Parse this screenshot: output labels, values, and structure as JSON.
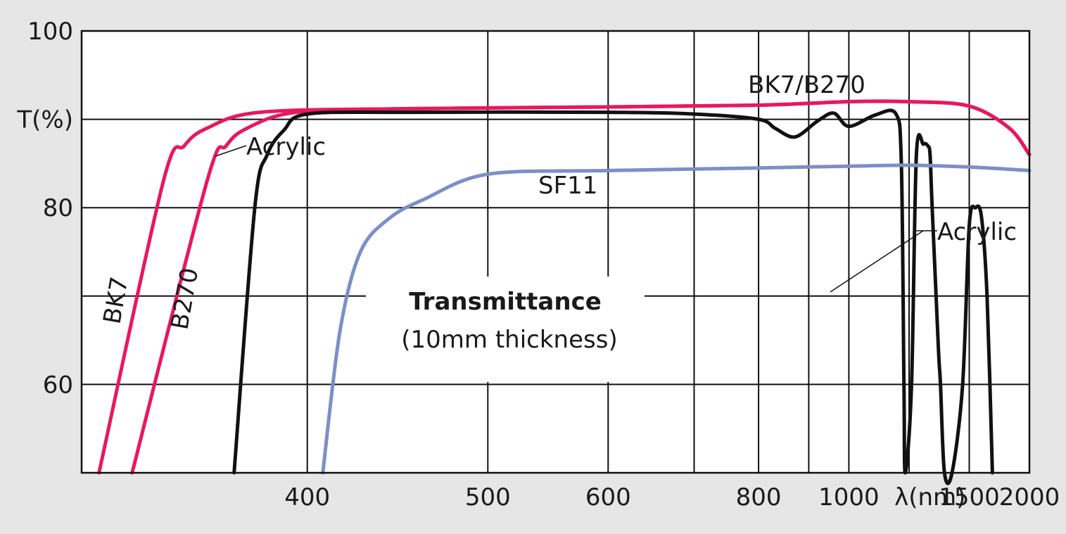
{
  "chart_data": {
    "type": "line",
    "title": "Transmittance",
    "subtitle": "(10mm thickness)",
    "ylabel": "T(%)",
    "xlabel": "λ(nm)",
    "ylim": [
      50,
      100
    ],
    "x_scale": "reciprocal",
    "xlim": [
      320,
      2000
    ],
    "grid": true,
    "x_ticks": [
      {
        "value": 400,
        "label": "400"
      },
      {
        "value": 500,
        "label": "500"
      },
      {
        "value": 600,
        "label": "600"
      },
      {
        "value": 800,
        "label": "800"
      },
      {
        "value": 1000,
        "label": "1000"
      },
      {
        "value": 1500,
        "label": "1500"
      },
      {
        "value": 2000,
        "label": "2000"
      }
    ],
    "x_gridlines": [
      400,
      500,
      600,
      700,
      800,
      900,
      1000,
      1200,
      1500
    ],
    "y_ticks": [
      {
        "value": 100,
        "label": "100"
      },
      {
        "value": 90,
        "label": "T(%)"
      },
      {
        "value": 80,
        "label": "80"
      },
      {
        "value": 60,
        "label": "60"
      }
    ],
    "y_gridlines": [
      90,
      80,
      70,
      60
    ],
    "colors": {
      "BK7": "#e8185e",
      "B270": "#e8185e",
      "Acrylic": "#111111",
      "SF11": "#7b8fc8"
    },
    "series": [
      {
        "name": "BK7",
        "x": [
          325,
          345,
          352,
          360,
          380,
          450,
          600,
          800,
          1000,
          1200,
          1500,
          1800,
          2000
        ],
        "y": [
          50,
          83,
          87,
          89,
          90.8,
          91.2,
          91.4,
          91.6,
          92,
          92,
          91.5,
          89,
          86
        ]
      },
      {
        "name": "B270",
        "x": [
          335,
          360,
          367,
          375,
          395,
          450,
          600,
          800,
          1000,
          1200,
          1500,
          1800,
          2000
        ],
        "y": [
          50,
          83,
          87,
          89,
          90.8,
          91.2,
          91.4,
          91.6,
          92,
          92,
          91.5,
          89,
          86
        ]
      },
      {
        "name": "Acrylic",
        "x": [
          370,
          378,
          383,
          390,
          400,
          450,
          600,
          700,
          800,
          830,
          870,
          920,
          960,
          1000,
          1080,
          1150,
          1170,
          1180,
          1185,
          1210,
          1230,
          1260,
          1280,
          1290,
          1300,
          1330,
          1340,
          1360,
          1400,
          1460,
          1500,
          1540,
          1580,
          1620,
          1660
        ],
        "y": [
          50,
          80,
          86,
          88.8,
          90.6,
          90.8,
          90.8,
          90.6,
          90,
          89,
          88,
          89.8,
          90.7,
          89.2,
          90.5,
          90.6,
          85,
          60,
          50,
          60,
          86,
          87.2,
          87,
          86,
          80,
          64,
          60,
          50,
          50,
          60,
          78,
          80,
          79,
          70,
          50
        ]
      },
      {
        "name": "SF11",
        "x": [
          407,
          415,
          425,
          440,
          460,
          500,
          600,
          800,
          1000,
          1200,
          1500,
          2000
        ],
        "y": [
          50,
          66,
          75,
          78.8,
          81,
          83.8,
          84.2,
          84.5,
          84.7,
          84.8,
          84.6,
          84.2
        ]
      }
    ],
    "annotations": [
      {
        "text": "BK7/B270"
      },
      {
        "text": "Acrylic"
      },
      {
        "text": "SF11"
      },
      {
        "text": "Acrylic"
      },
      {
        "text": "BK7"
      },
      {
        "text": "B270"
      }
    ]
  }
}
